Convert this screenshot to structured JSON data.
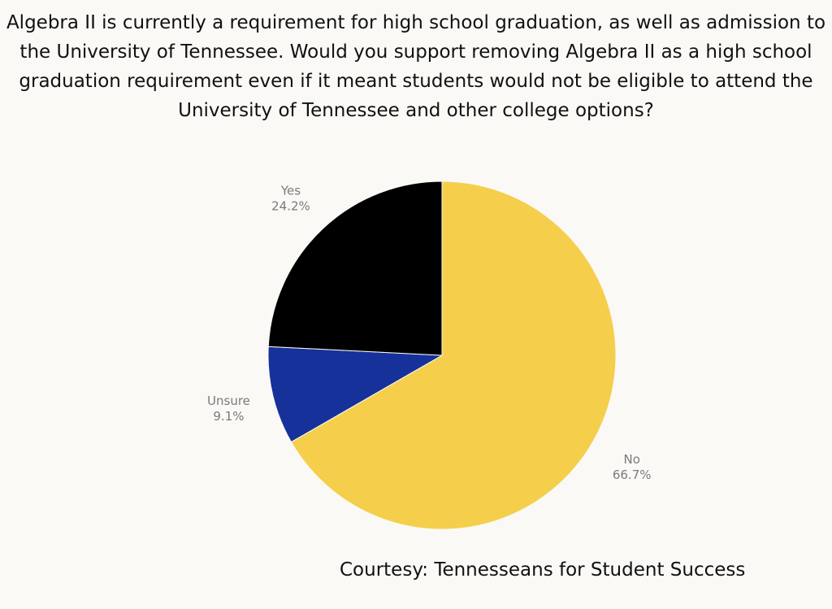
{
  "title_lines": [
    "Algebra II is currently a requirement for high school graduation, as well as admission to",
    "the University of Tennessee. Would you support removing Algebra II as a high school",
    "graduation requirement even if it meant students would not be eligible to attend the",
    "University of Tennessee and other college options?"
  ],
  "credit": "Courtesy: Tennesseans for Student Success",
  "chart_data": {
    "type": "pie",
    "title": "Algebra II is currently a requirement for high school graduation, as well as admission to the University of Tennessee. Would you support removing Algebra II as a high school graduation requirement even if it meant students would not be eligible to attend the University of Tennessee and other college options?",
    "legend": "none",
    "slices": [
      {
        "label": "No",
        "value": 66.7,
        "display": "66.7%",
        "color": "#f5cf4b"
      },
      {
        "label": "Unsure",
        "value": 9.1,
        "display": "9.1%",
        "color": "#17319a"
      },
      {
        "label": "Yes",
        "value": 24.2,
        "display": "24.2%",
        "color": "#000000"
      }
    ]
  }
}
